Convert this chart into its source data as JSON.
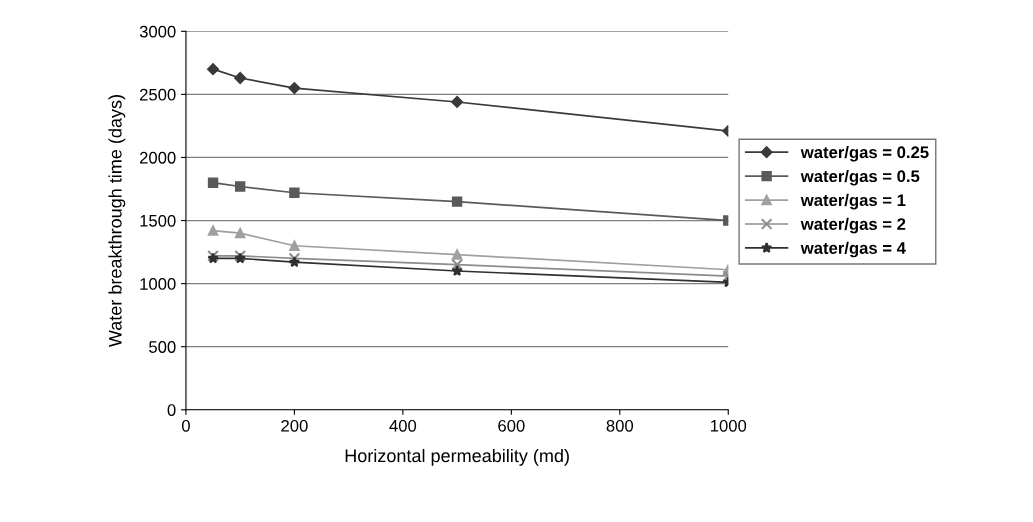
{
  "chart_data": {
    "type": "line",
    "xlabel": "Horizontal permeability (md)",
    "ylabel": "Water breakthrough time (days)",
    "x": [
      50,
      100,
      200,
      500,
      1000
    ],
    "series": [
      {
        "name": "water/gas = 0.25",
        "color": "#3a3a3a",
        "marker": "diamond",
        "values": [
          2700,
          2630,
          2550,
          2440,
          2210
        ]
      },
      {
        "name": "water/gas = 0.5",
        "color": "#5a5a5a",
        "marker": "square",
        "values": [
          1800,
          1770,
          1720,
          1650,
          1500
        ]
      },
      {
        "name": "water/gas = 1",
        "color": "#a0a0a0",
        "marker": "triangle",
        "values": [
          1420,
          1400,
          1300,
          1230,
          1110
        ]
      },
      {
        "name": "water/gas = 2",
        "color": "#8c8c8c",
        "marker": "cross",
        "values": [
          1220,
          1220,
          1200,
          1150,
          1060
        ]
      },
      {
        "name": "water/gas = 4",
        "color": "#303030",
        "marker": "star",
        "values": [
          1200,
          1200,
          1170,
          1100,
          1010
        ]
      }
    ],
    "xlim": [
      0,
      1000
    ],
    "xticks": [
      0,
      200,
      400,
      600,
      800,
      1000
    ],
    "ylim": [
      0,
      3000
    ],
    "yticks": [
      0,
      500,
      1000,
      1500,
      2000,
      2500,
      3000
    ],
    "grid": "y",
    "legend": "right",
    "line_style": "solid"
  }
}
